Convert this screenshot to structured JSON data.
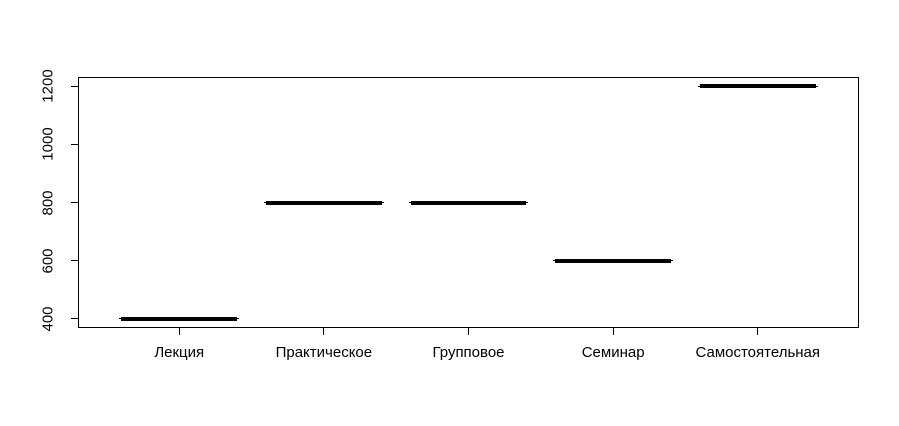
{
  "chart_data": {
    "type": "boxplot",
    "title": "",
    "xlabel": "",
    "ylabel": "",
    "grid": false,
    "legend": null,
    "categories": [
      "Лекция",
      "Практическое",
      "Групповое",
      "Семинар",
      "Самостоятельная"
    ],
    "values": [
      400,
      800,
      800,
      600,
      1200
    ],
    "y_ticks": [
      400,
      600,
      800,
      1000,
      1200
    ],
    "y_tick_labels": [
      "400",
      "600",
      "800",
      "1000",
      "1200"
    ],
    "ylim": [
      368,
      1232
    ],
    "xlim": [
      0.3,
      5.7
    ],
    "box_halfwidth_units": 0.4,
    "colors": {
      "line": "#000000",
      "background": "#ffffff"
    }
  }
}
